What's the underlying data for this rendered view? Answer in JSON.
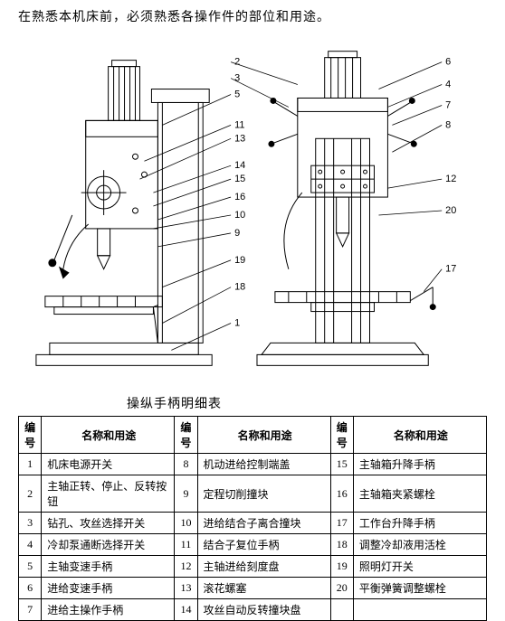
{
  "intro_text": "在熟悉本机床前，必须熟悉各操作件的部位和用途。",
  "table_title": "操纵手柄明细表",
  "headers": {
    "num": "编号",
    "name": "名称和用途"
  },
  "rows": [
    {
      "n1": "1",
      "t1": "机床电源开关",
      "n2": "8",
      "t2": "机动进给控制端盖",
      "n3": "15",
      "t3": "主轴箱升降手柄"
    },
    {
      "n1": "2",
      "t1": "主轴正转、停止、反转按钮",
      "n2": "9",
      "t2": "定程切削撞块",
      "n3": "16",
      "t3": "主轴箱夹紧螺栓"
    },
    {
      "n1": "3",
      "t1": "钻孔、攻丝选择开关",
      "n2": "10",
      "t2": "进给结合子离合撞块",
      "n3": "17",
      "t3": "工作台升降手柄"
    },
    {
      "n1": "4",
      "t1": "冷却泵通断选择开关",
      "n2": "11",
      "t2": "结合子复位手柄",
      "n3": "18",
      "t3": "调整冷却液用活栓"
    },
    {
      "n1": "5",
      "t1": "主轴变速手柄",
      "n2": "12",
      "t2": "主轴进给刻度盘",
      "n3": "19",
      "t3": "照明灯开关"
    },
    {
      "n1": "6",
      "t1": "进给变速手柄",
      "n2": "13",
      "t2": "滚花螺塞",
      "n3": "20",
      "t3": "平衡弹簧调整螺栓"
    },
    {
      "n1": "7",
      "t1": "进给主操作手柄",
      "n2": "14",
      "t2": "攻丝自动反转撞块盘",
      "n3": "",
      "t3": ""
    }
  ],
  "callouts_right": [
    "2",
    "3",
    "5",
    "11",
    "13",
    "14",
    "15",
    "16",
    "10",
    "9",
    "19",
    "18",
    "1"
  ],
  "callouts_far_right": [
    "6",
    "4",
    "7",
    "8",
    "12",
    "20",
    "17"
  ],
  "diagram": {
    "stroke": "#000000",
    "stroke_width": 1,
    "background": "#ffffff"
  }
}
